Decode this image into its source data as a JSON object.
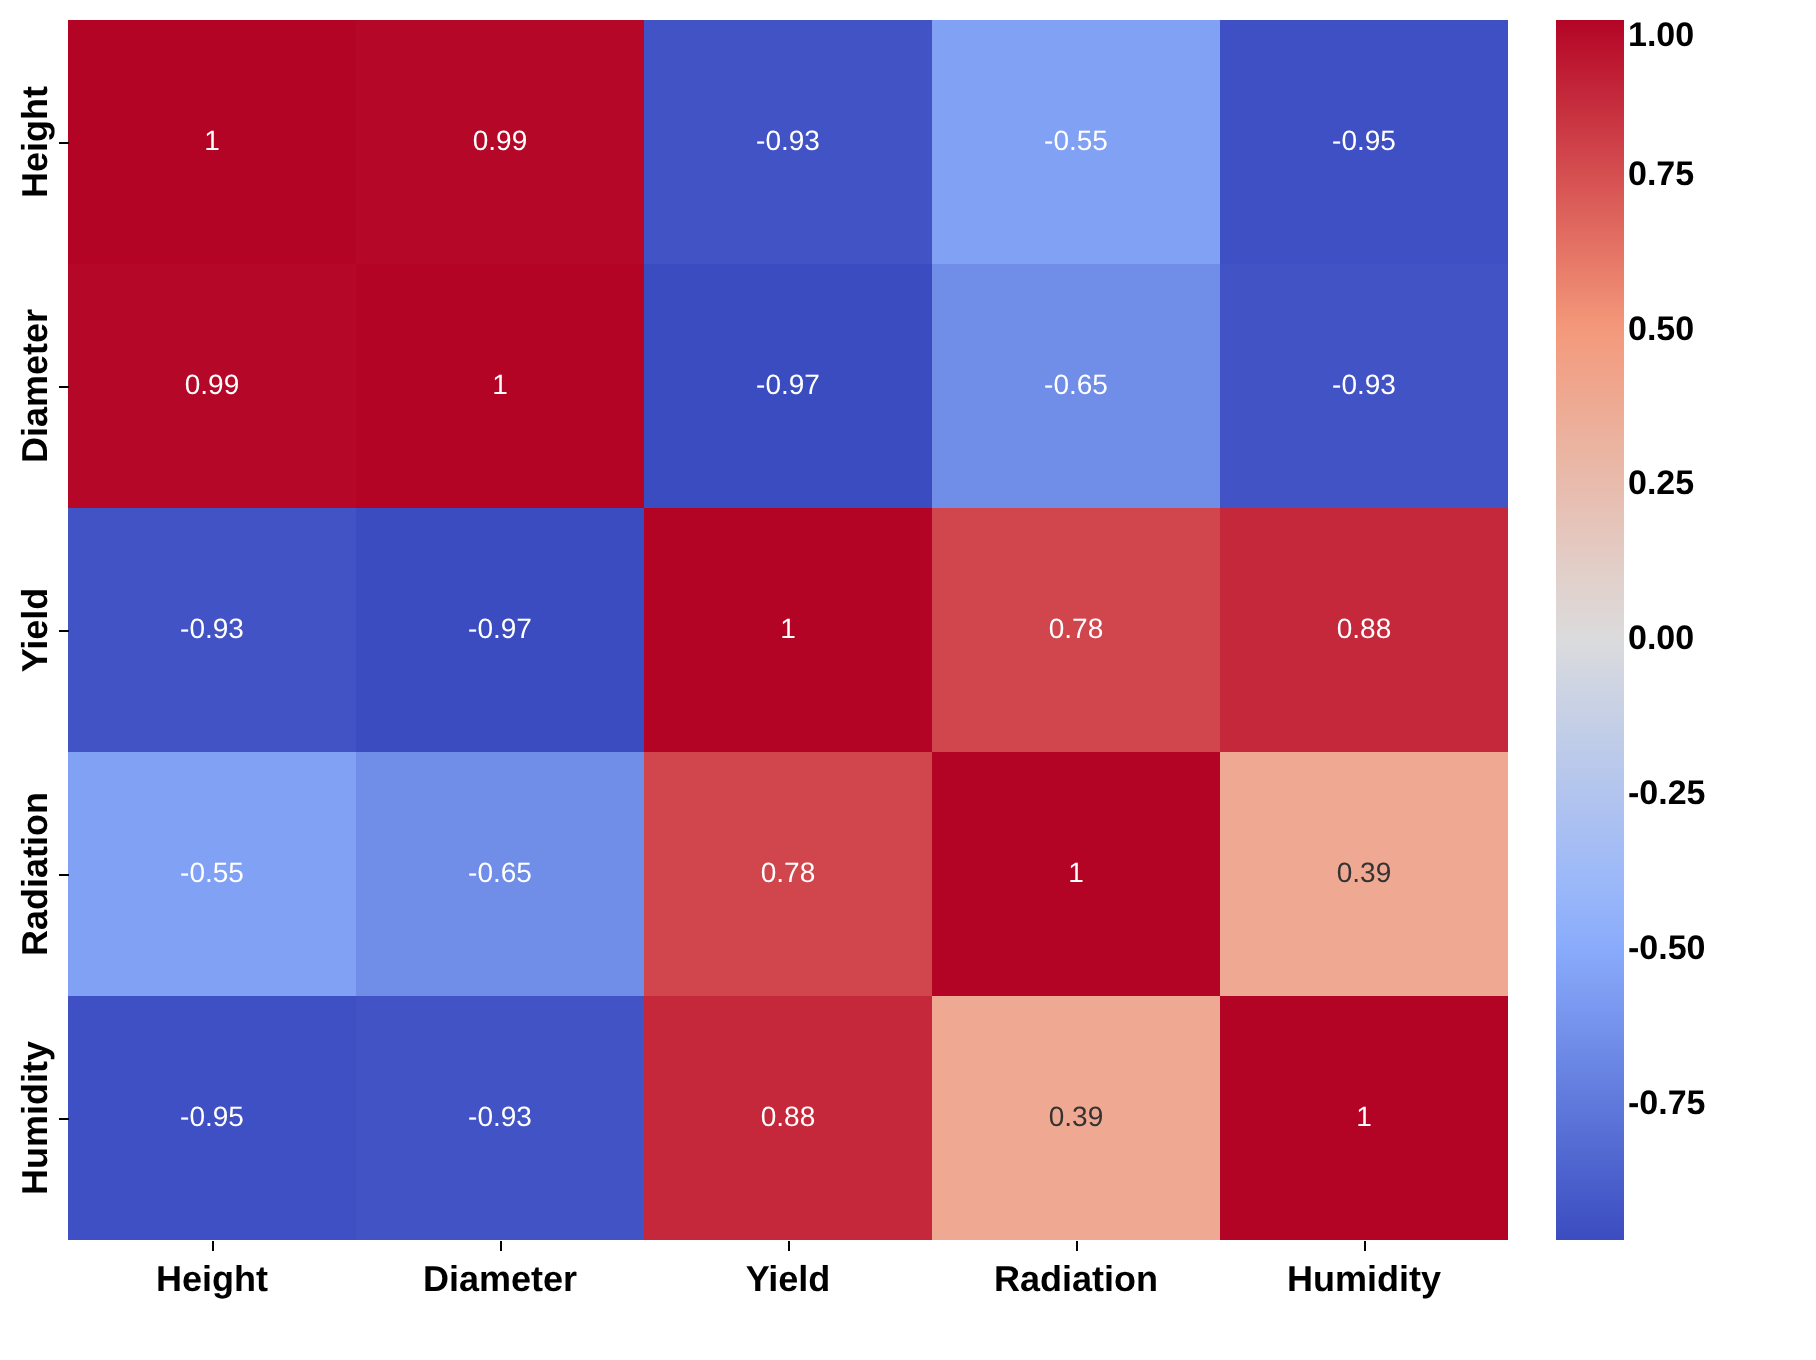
{
  "chart_data": {
    "type": "heatmap",
    "categories": [
      "Height",
      "Diameter",
      "Yield",
      "Radiation",
      "Humidity"
    ],
    "y_categories": [
      "Height",
      "Diameter",
      "Yield",
      "Radiation",
      "Humidity"
    ],
    "cells": [
      [
        1,
        0.99,
        -0.93,
        -0.55,
        -0.95
      ],
      [
        0.99,
        1,
        -0.97,
        -0.65,
        -0.93
      ],
      [
        -0.93,
        -0.97,
        1,
        0.78,
        0.88
      ],
      [
        -0.55,
        -0.65,
        0.78,
        1,
        0.39
      ],
      [
        -0.95,
        -0.93,
        0.88,
        0.39,
        1
      ]
    ],
    "data_labels": true,
    "clim": [
      -0.97,
      1
    ],
    "cticks": [
      {
        "value": -0.75,
        "label": "-0.75"
      },
      {
        "value": -0.5,
        "label": "-0.50"
      },
      {
        "value": -0.25,
        "label": "-0.25"
      },
      {
        "value": 0,
        "label": "0.00"
      },
      {
        "value": 0.25,
        "label": "0.25"
      },
      {
        "value": 0.5,
        "label": "0.50"
      },
      {
        "value": 0.75,
        "label": "0.75"
      },
      {
        "value": 1,
        "label": "1.00"
      }
    ]
  }
}
